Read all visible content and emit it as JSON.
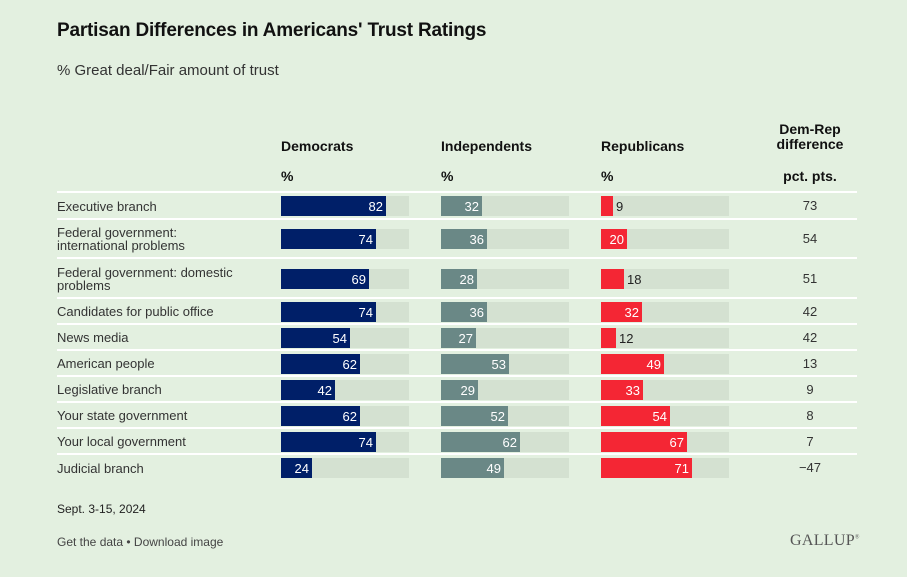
{
  "header": {
    "title": "Partisan Differences in Americans' Trust Ratings",
    "subtitle": "% Great deal/Fair amount of trust"
  },
  "columns": {
    "dem": {
      "label": "Democrats",
      "unit": "%"
    },
    "ind": {
      "label": "Independents",
      "unit": "%"
    },
    "rep": {
      "label": "Republicans",
      "unit": "%"
    },
    "diff": {
      "label_line1": "Dem-Rep",
      "label_line2": "difference",
      "unit": "pct. pts."
    }
  },
  "colors": {
    "background": "#e3f0e0",
    "dem": "#001f68",
    "ind": "#6a8886",
    "rep": "#f42634",
    "track": "#d4e1d1"
  },
  "chart_data": {
    "type": "bar",
    "title": "Partisan Differences in Americans' Trust Ratings",
    "subtitle": "% Great deal/Fair amount of trust",
    "xlim": [
      0,
      100
    ],
    "categories": [
      "Executive branch",
      "Federal government: international problems",
      "Federal government: domestic problems",
      "Candidates for public office",
      "News media",
      "American people",
      "Legislative branch",
      "Your state government",
      "Your local government",
      "Judicial branch"
    ],
    "category_lines": [
      [
        "Executive branch"
      ],
      [
        "Federal government:",
        "international problems"
      ],
      [
        "Federal government: domestic",
        "problems"
      ],
      [
        "Candidates for public office"
      ],
      [
        "News media"
      ],
      [
        "American people"
      ],
      [
        "Legislative branch"
      ],
      [
        "Your state government"
      ],
      [
        "Your local government"
      ],
      [
        "Judicial branch"
      ]
    ],
    "series": [
      {
        "name": "Democrats",
        "key": "dem",
        "values": [
          82,
          74,
          69,
          74,
          54,
          62,
          42,
          62,
          74,
          24
        ]
      },
      {
        "name": "Independents",
        "key": "ind",
        "values": [
          32,
          36,
          28,
          36,
          27,
          53,
          29,
          52,
          62,
          49
        ]
      },
      {
        "name": "Republicans",
        "key": "rep",
        "values": [
          9,
          20,
          18,
          32,
          12,
          49,
          33,
          54,
          67,
          71
        ]
      }
    ],
    "difference": {
      "name": "Dem-Rep difference (pct. pts.)",
      "values": [
        "73",
        "54",
        "51",
        "42",
        "42",
        "13",
        "9",
        "8",
        "7",
        "−47"
      ]
    }
  },
  "footer": {
    "date": "Sept. 3-15, 2024",
    "get_data": "Get the data",
    "separator": " • ",
    "download": "Download image",
    "logo": "GALLUP"
  }
}
